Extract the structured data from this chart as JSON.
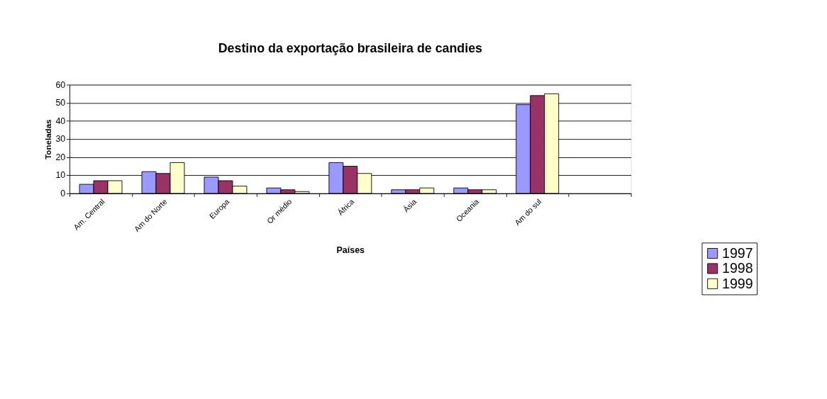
{
  "chart_data": {
    "type": "bar",
    "title": "Destino da exportação brasileira de candies",
    "xlabel": "Países",
    "ylabel": "Toneladas",
    "categories": [
      "Am. Central",
      "Am do Norte",
      "Europa",
      "Or médio",
      "África",
      "Ásia",
      "Oceania",
      "Am do sul",
      null
    ],
    "series": [
      {
        "name": "1997",
        "color": "#9999ff",
        "values": [
          5,
          12,
          9,
          3,
          17,
          2,
          3,
          49,
          null
        ]
      },
      {
        "name": "1998",
        "color": "#993366",
        "values": [
          7,
          11,
          7,
          2,
          15,
          2,
          2,
          54,
          null
        ]
      },
      {
        "name": "1999",
        "color": "#ffffcc",
        "values": [
          7,
          17,
          4,
          1,
          11,
          3,
          2,
          55,
          null
        ]
      }
    ],
    "ylim": [
      0,
      60
    ],
    "yticks": [
      0,
      10,
      20,
      30,
      40,
      50,
      60
    ],
    "grid": "y",
    "legend": "bottom right"
  }
}
